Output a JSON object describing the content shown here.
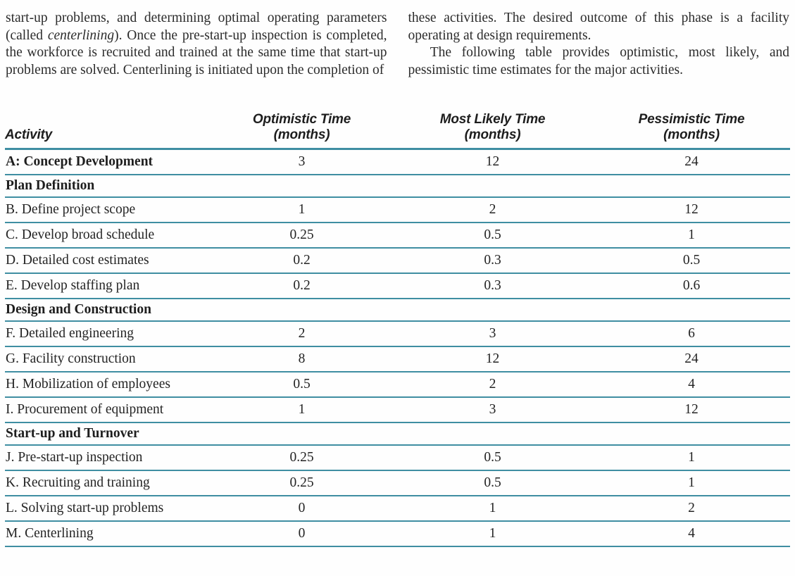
{
  "text_block": {
    "left": {
      "segment_before_italic": "start-up problems, and determining optimal operating parameters (called ",
      "italic_term": "centerlining",
      "segment_after_italic": "). Once the pre-start-up inspection is completed, the workforce is recruited and trained at the same time that start-up problems are solved. Centerlining is initiated upon the completion of"
    },
    "right": {
      "paragraph_1": "these activities. The desired outcome of this phase is a facility operating at design requirements.",
      "paragraph_2": "The following table provides optimistic, most likely, and pessimistic time estimates for the major activities."
    }
  },
  "table": {
    "headers": {
      "activity": "Activity",
      "optimistic": "Optimistic Time",
      "most_likely": "Most Likely Time",
      "pessimistic": "Pessimistic Time",
      "unit": "(months)"
    },
    "rows": [
      {
        "type": "data",
        "bold": true,
        "activity": "A: Concept Development",
        "optimistic": "3",
        "most_likely": "12",
        "pessimistic": "24"
      },
      {
        "type": "section",
        "activity": "Plan Definition"
      },
      {
        "type": "data",
        "bold": false,
        "activity": "B. Define project scope",
        "optimistic": "1",
        "most_likely": "2",
        "pessimistic": "12"
      },
      {
        "type": "data",
        "bold": false,
        "activity": "C. Develop broad schedule",
        "optimistic": "0.25",
        "most_likely": "0.5",
        "pessimistic": "1"
      },
      {
        "type": "data",
        "bold": false,
        "activity": "D. Detailed cost estimates",
        "optimistic": "0.2",
        "most_likely": "0.3",
        "pessimistic": "0.5"
      },
      {
        "type": "data",
        "bold": false,
        "activity": "E. Develop staffing plan",
        "optimistic": "0.2",
        "most_likely": "0.3",
        "pessimistic": "0.6"
      },
      {
        "type": "section",
        "activity": "Design and Construction"
      },
      {
        "type": "data",
        "bold": false,
        "activity": "F. Detailed engineering",
        "optimistic": "2",
        "most_likely": "3",
        "pessimistic": "6"
      },
      {
        "type": "data",
        "bold": false,
        "activity": "G. Facility construction",
        "optimistic": "8",
        "most_likely": "12",
        "pessimistic": "24"
      },
      {
        "type": "data",
        "bold": false,
        "activity": "H. Mobilization of employees",
        "optimistic": "0.5",
        "most_likely": "2",
        "pessimistic": "4"
      },
      {
        "type": "data",
        "bold": false,
        "activity": "I. Procurement of equipment",
        "optimistic": "1",
        "most_likely": "3",
        "pessimistic": "12"
      },
      {
        "type": "section",
        "activity": "Start-up and Turnover"
      },
      {
        "type": "data",
        "bold": false,
        "activity": "J. Pre-start-up inspection",
        "optimistic": "0.25",
        "most_likely": "0.5",
        "pessimistic": "1"
      },
      {
        "type": "data",
        "bold": false,
        "activity": "K. Recruiting and training",
        "optimistic": "0.25",
        "most_likely": "0.5",
        "pessimistic": "1"
      },
      {
        "type": "data",
        "bold": false,
        "activity": "L. Solving start-up problems",
        "optimistic": "0",
        "most_likely": "1",
        "pessimistic": "2"
      },
      {
        "type": "data",
        "bold": false,
        "activity": "M. Centerlining",
        "optimistic": "0",
        "most_likely": "1",
        "pessimistic": "4"
      }
    ]
  },
  "colors": {
    "rule": "#3f8ea2",
    "text": "#262626"
  }
}
